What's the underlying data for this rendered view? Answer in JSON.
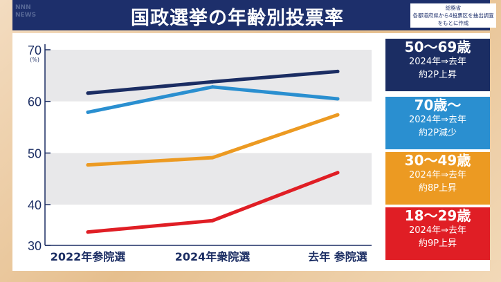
{
  "header": {
    "title": "国政選挙の年齢別投票率",
    "logo": "NNN NEWS",
    "source_lines": [
      "総務省",
      "各都道府県から4投票区を抽出調査",
      "をもとに作成"
    ]
  },
  "legend": [
    {
      "age": "50〜69歳",
      "line2": "2024年⇒去年",
      "line3": "約2P上昇",
      "color": "#1b2d63"
    },
    {
      "age": "70歳〜",
      "line2": "2024年⇒去年",
      "line3": "約2P減少",
      "color": "#2a8fd0"
    },
    {
      "age": "30〜49歳",
      "line2": "2024年⇒去年",
      "line3": "約8P上昇",
      "color": "#ec9a22"
    },
    {
      "age": "18〜29歳",
      "line2": "2024年⇒去年",
      "line3": "約9P上昇",
      "color": "#e01e25"
    }
  ],
  "chart_data": {
    "type": "line",
    "categories": [
      "2022年参院選",
      "2024年衆院選",
      "去年 参院選"
    ],
    "yticks": [
      70,
      60,
      50,
      40,
      30
    ],
    "yunit": "(%)",
    "ylim": [
      30,
      70
    ],
    "grid": "alternating bands",
    "legend_position": "right",
    "series": [
      {
        "name": "50〜69歳",
        "values": [
          61.6,
          63.8,
          65.8
        ],
        "color": "#1b2d63"
      },
      {
        "name": "70歳〜",
        "values": [
          57.9,
          62.8,
          60.5
        ],
        "color": "#2a8fd0"
      },
      {
        "name": "30〜49歳",
        "values": [
          47.7,
          49.1,
          57.4
        ],
        "color": "#ec9a22"
      },
      {
        "name": "18〜29歳",
        "values": [
          34.7,
          36.9,
          46.2
        ],
        "color": "#e01e25"
      }
    ]
  }
}
